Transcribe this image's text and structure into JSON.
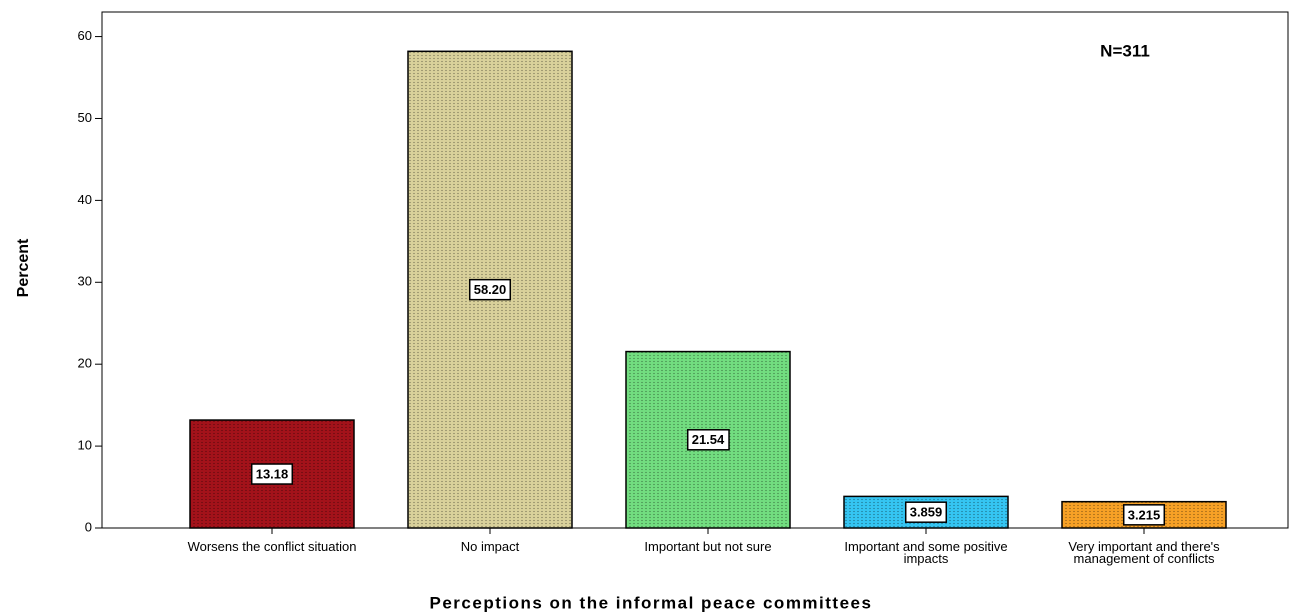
{
  "chart_data": {
    "type": "bar",
    "x_label": "Perceptions on the informal peace committees",
    "y_label": "Percent",
    "annotation": "N=311",
    "categories": [
      "Worsens the conflict situation",
      "No impact",
      "Important but not sure",
      "Important and some positive impacts",
      "Very important and there's management of conflicts"
    ],
    "values": [
      13.18,
      58.2,
      21.54,
      3.859,
      3.215
    ],
    "value_labels": [
      "13.18",
      "58.20",
      "21.54",
      "3.859",
      "3.215"
    ],
    "colors": [
      "#a3121a",
      "#d9d19b",
      "#72dd80",
      "#35c5f2",
      "#f7a126"
    ],
    "ylim": [
      0,
      63
    ],
    "yticks": [
      0,
      10,
      20,
      30,
      40,
      50,
      60
    ]
  }
}
